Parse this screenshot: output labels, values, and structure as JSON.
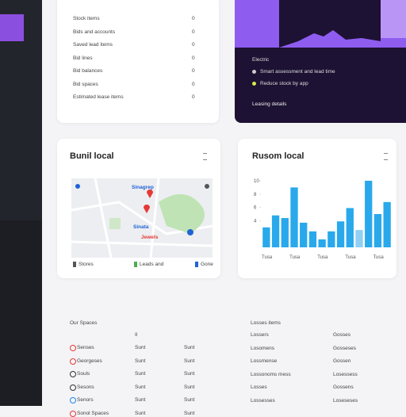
{
  "summary_list": {
    "rows": [
      {
        "label": "Stock items",
        "value": "0"
      },
      {
        "label": "Bids and accounts",
        "value": "0"
      },
      {
        "label": "Saved lead items",
        "value": "0"
      },
      {
        "label": "Bid lines",
        "value": "0"
      },
      {
        "label": "Bid balances",
        "value": "0"
      },
      {
        "label": "Bid spaces",
        "value": "0"
      },
      {
        "label": "Estimated lease items",
        "value": "0"
      }
    ]
  },
  "feature_card": {
    "lines": [
      "Electric",
      "Smart assessment and lead time",
      "Reduce stock by app"
    ],
    "footer": "Leasing details"
  },
  "map_card": {
    "title": "Bunil local",
    "map_labels": [
      "Sinagrep",
      "Sinata",
      "Jewels"
    ],
    "legend": [
      "Stores",
      "Leads and",
      "Gone"
    ]
  },
  "chart_card": {
    "title": "Rusom local",
    "chart": {
      "type": "bar",
      "color": "#29a9ec",
      "values": [
        3,
        4.8,
        4.4,
        9,
        3.7,
        2.4,
        1.2,
        2.4,
        3.9,
        5.9,
        2.6,
        10,
        5,
        6.8
      ],
      "categories": [
        "Tusa",
        null,
        null,
        "Tusa",
        null,
        null,
        "Tusa",
        null,
        null,
        "Tusa",
        null,
        null,
        "Tusa",
        null
      ],
      "ylim": [
        0,
        10
      ],
      "yticks": [
        4,
        6,
        8,
        10
      ]
    }
  },
  "bottom_left": {
    "header": "Our Spaces",
    "col": "Il",
    "rows": [
      [
        "Senses",
        "Sunt",
        "Sunt"
      ],
      [
        "Georgeses",
        "Sunt",
        "Sunt"
      ],
      [
        "Souls",
        "Sunt",
        "Sunt"
      ],
      [
        "Sesons",
        "Sunt",
        "Sunt"
      ],
      [
        "Senors",
        "Sunt",
        "Sunt"
      ],
      [
        "Sonol Spaces",
        "Sunt",
        "Sunt"
      ]
    ]
  },
  "bottom_right": {
    "header": "Losses items",
    "rows": [
      [
        "Lossers",
        "Gosses"
      ],
      [
        "Losomens",
        "Gosseses"
      ],
      [
        "Lossmense",
        "Gossen"
      ],
      [
        "Lossonoms mess",
        "Losessess"
      ],
      [
        "Losses",
        "Gossens"
      ],
      [
        "Lossesses",
        "Loseseses"
      ]
    ]
  }
}
